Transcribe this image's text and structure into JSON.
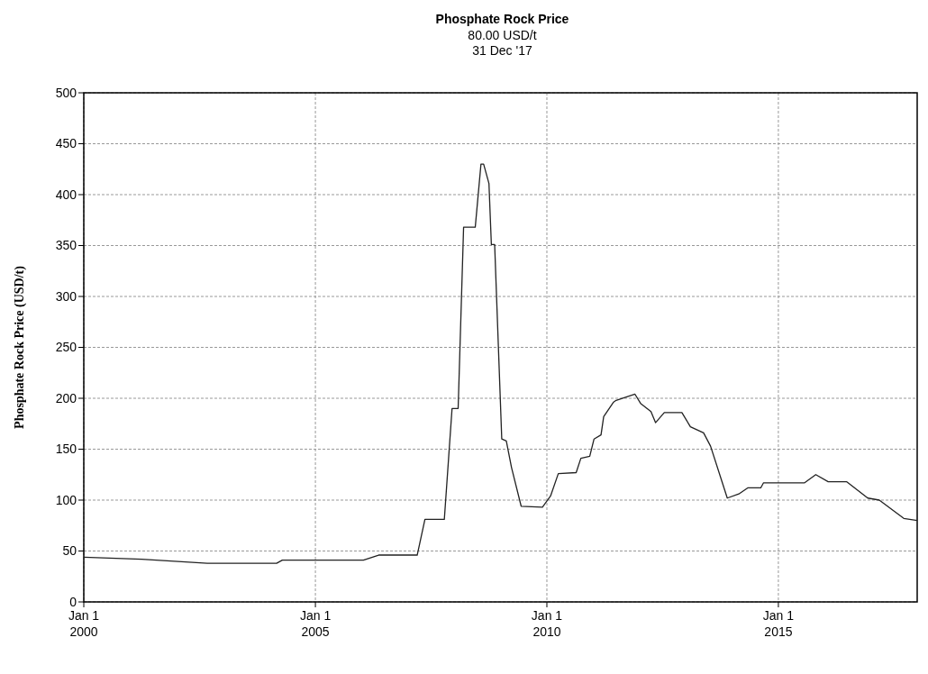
{
  "chart_data": {
    "type": "line",
    "title": "Phosphate Rock Price",
    "subtitle": "80.00 USD/t\n31 Dec '17",
    "ylabel": "Phosphate Rock Price (USD/t)",
    "x": [
      "2000-01-01",
      "2001-04-01",
      "2002-09-01",
      "2004-03-01",
      "2004-04-15",
      "2006-01-15",
      "2006-05-15",
      "2007-03-15",
      "2007-05-15",
      "2007-10-15",
      "2007-12-15",
      "2008-02-01",
      "2008-03-15",
      "2008-06-15",
      "2008-07-30",
      "2008-08-20",
      "2008-10-01",
      "2008-10-20",
      "2008-11-15",
      "2009-01-10",
      "2009-02-15",
      "2009-03-28",
      "2009-06-12",
      "2009-11-27",
      "2010-01-30",
      "2010-04-01",
      "2010-08-20",
      "2010-09-26",
      "2010-12-05",
      "2011-01-08",
      "2011-03-04",
      "2011-03-25",
      "2011-06-09",
      "2011-07-01",
      "2011-11-27",
      "2012-01-10",
      "2012-04-01",
      "2012-05-07",
      "2012-07-15",
      "2012-12-01",
      "2013-02-06",
      "2013-05-21",
      "2013-07-15",
      "2013-11-24",
      "2014-02-23",
      "2014-05-04",
      "2014-08-15",
      "2014-09-06",
      "2015-07-27",
      "2015-10-23",
      "2016-01-29",
      "2016-06-24",
      "2016-12-06",
      "2017-03-07",
      "2017-09-16",
      "2017-12-31"
    ],
    "series": [
      {
        "color": "#222222",
        "values": [
          44,
          42,
          38,
          38,
          41,
          41,
          46,
          46,
          81,
          81,
          190,
          190,
          368,
          368,
          430,
          430,
          411,
          351,
          351,
          160,
          158,
          132,
          94,
          93,
          104,
          126,
          127,
          141,
          143,
          160,
          164,
          182,
          196,
          198,
          204,
          195,
          187,
          176,
          186,
          186,
          172,
          166,
          153,
          102,
          106,
          112,
          112,
          117,
          117,
          125,
          118,
          118,
          102,
          100,
          82,
          80
        ]
      }
    ],
    "xlim": [
      "2000-01-01",
      "2017-12-31"
    ],
    "xticks": [
      {
        "value": "2000-01-01",
        "label": "Jan 1\n2000"
      },
      {
        "value": "2005-01-01",
        "label": "Jan 1\n2005"
      },
      {
        "value": "2010-01-01",
        "label": "Jan 1\n2010"
      },
      {
        "value": "2015-01-01",
        "label": "Jan 1\n2015"
      }
    ],
    "ylim": [
      0,
      500
    ],
    "yticks": [
      0,
      50,
      100,
      150,
      200,
      250,
      300,
      350,
      400,
      450,
      500
    ],
    "grid": true,
    "line_style": "solid",
    "marker": "none"
  }
}
